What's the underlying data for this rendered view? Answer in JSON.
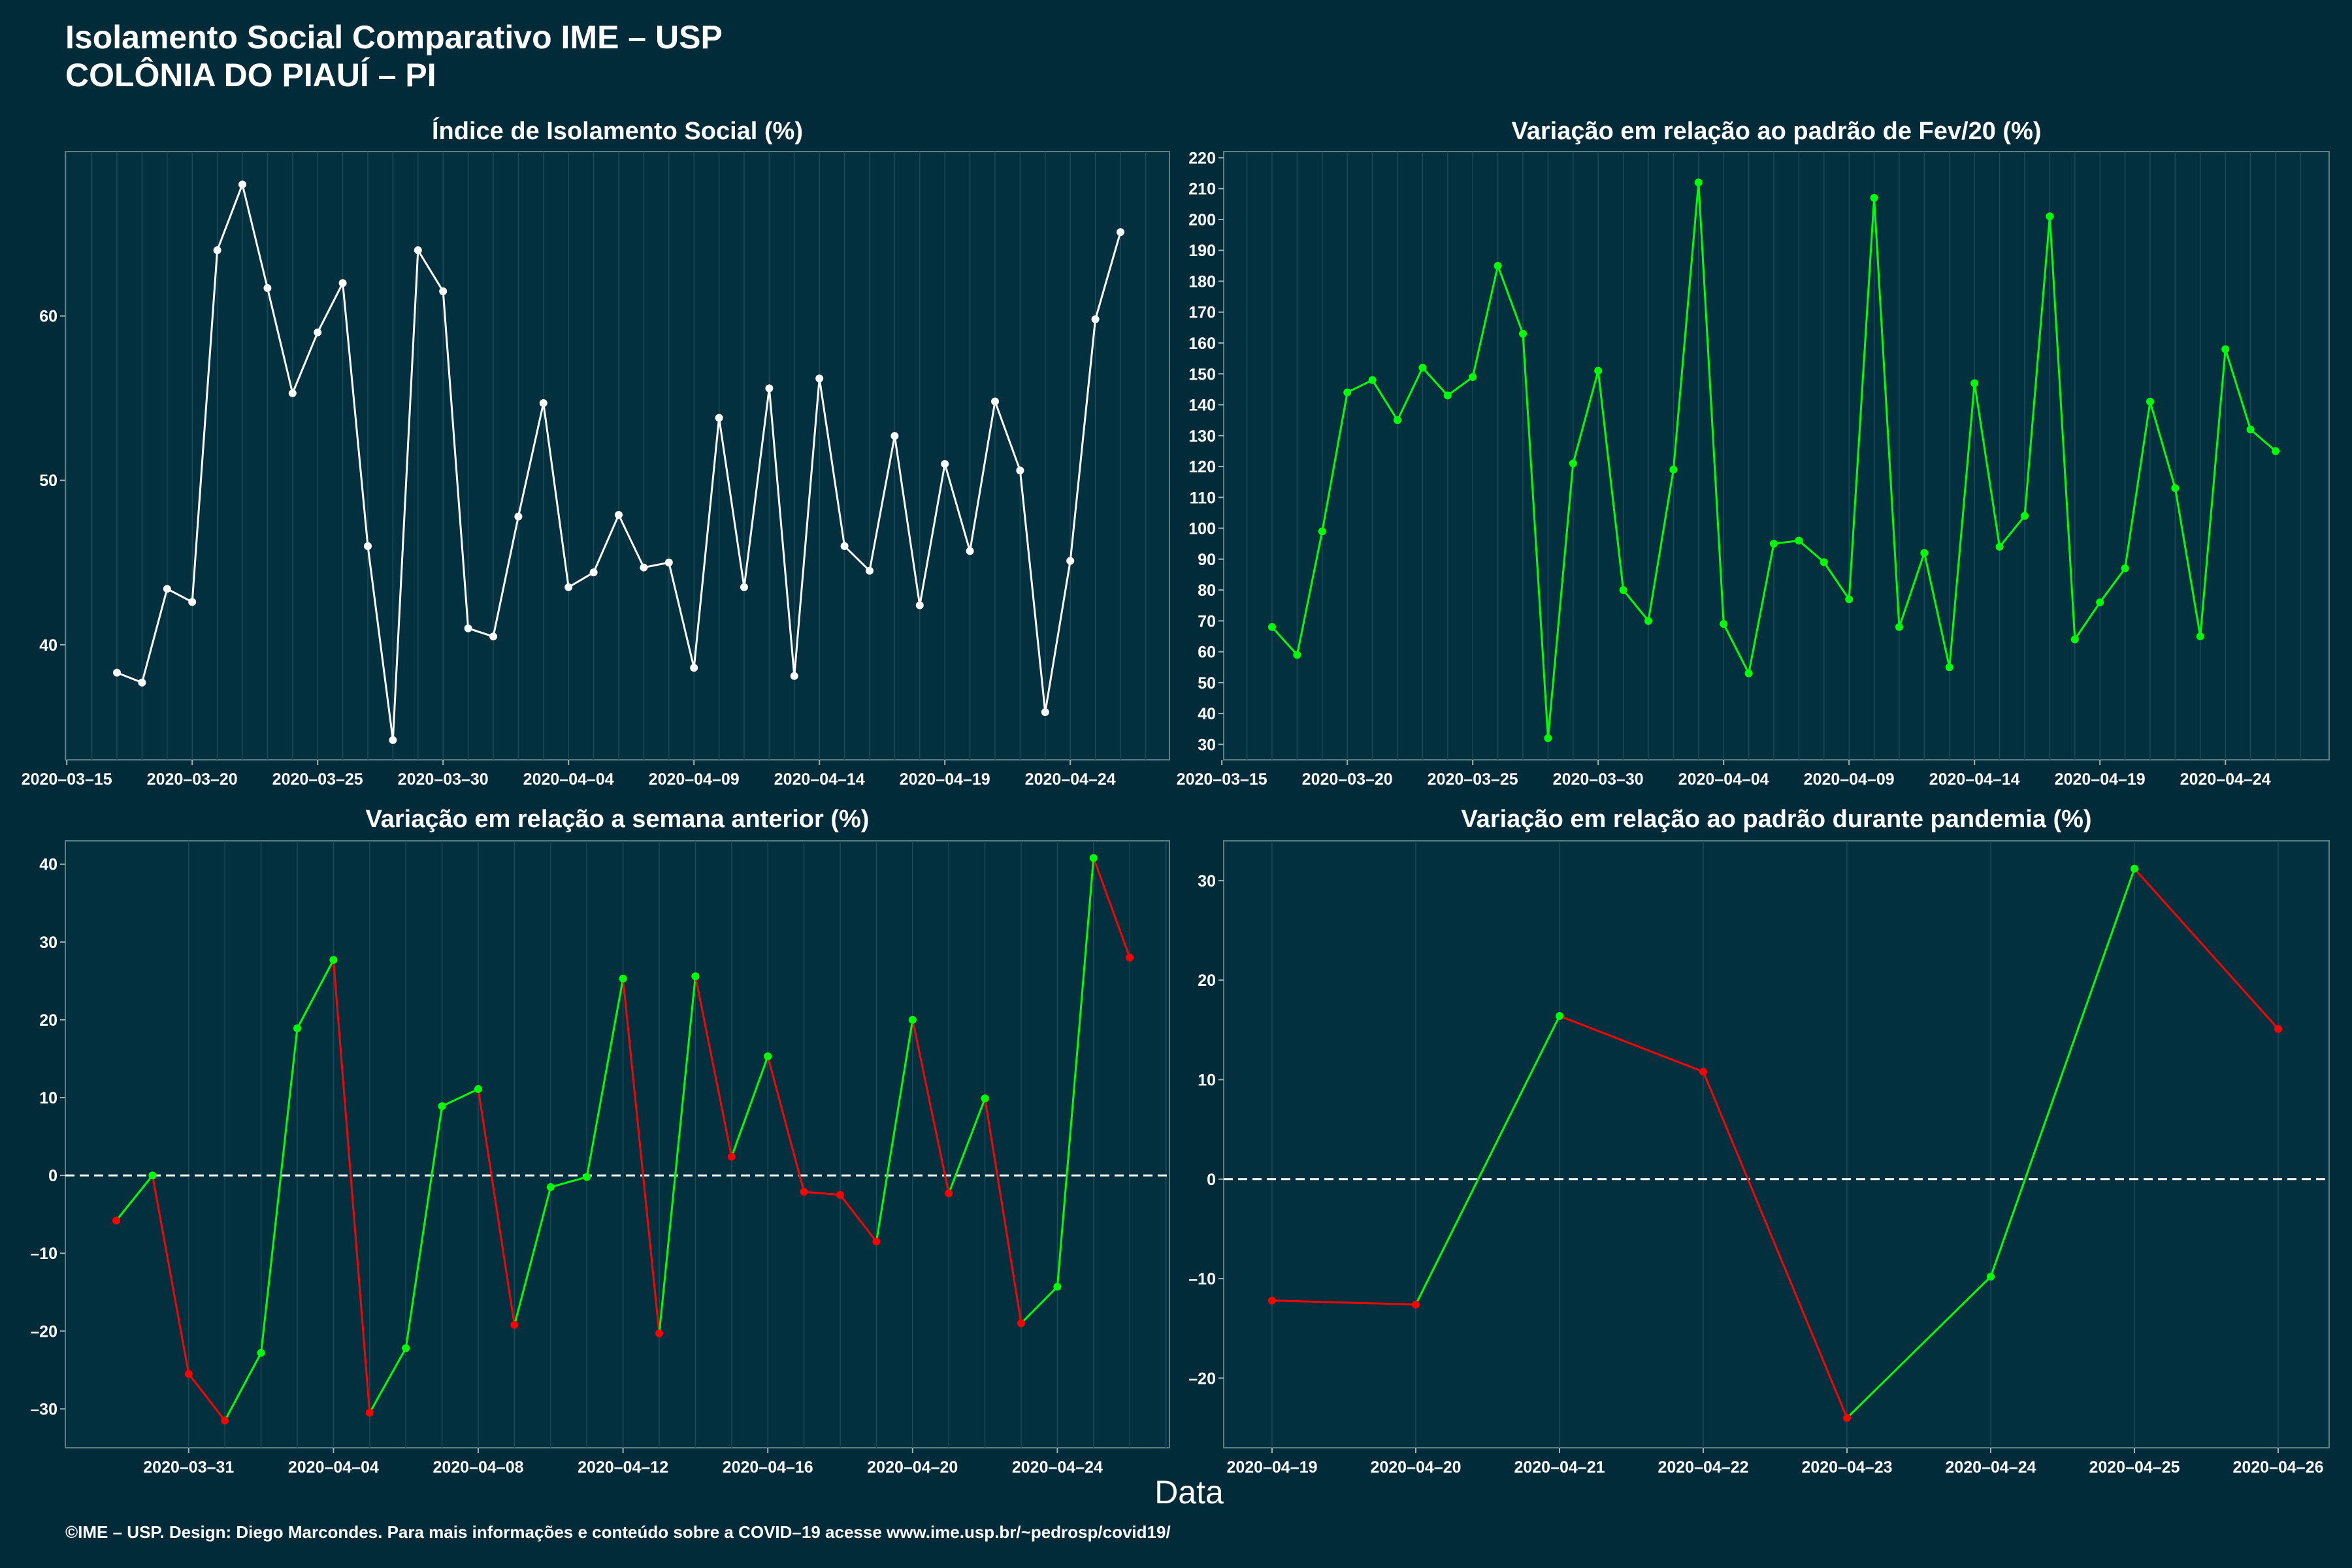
{
  "header": {
    "title": "Isolamento Social Comparativo IME – USP\nCOLÔNIA DO PIAUÍ – PI"
  },
  "x_axis_title": "Data",
  "footer": "©IME – USP. Design: Diego Marcondes. Para mais informações e conteúdo sobre a COVID–19 acesse www.ime.usp.br/~pedrosp/covid19/",
  "colors": {
    "background": "#022b3a",
    "panel": "#02303e",
    "white_line": "#ffffff",
    "positive": "#00ff00",
    "negative": "#ff0000"
  },
  "chart_data": [
    {
      "type": "line",
      "title": "Índice de Isolamento Social (%)",
      "color": "white",
      "x_ticks": [
        "2020–03–15",
        "2020–03–20",
        "2020–03–25",
        "2020–03–30",
        "2020–04–04",
        "2020–04–09",
        "2020–04–14",
        "2020–04–19",
        "2020–04–24"
      ],
      "y_ticks": [
        "40",
        "50",
        "60"
      ],
      "ylim": [
        33,
        70
      ],
      "x_start": "2020-03-17",
      "x": [
        "2020-03-17",
        "2020-03-18",
        "2020-03-19",
        "2020-03-20",
        "2020-03-21",
        "2020-03-22",
        "2020-03-23",
        "2020-03-24",
        "2020-03-25",
        "2020-03-26",
        "2020-03-27",
        "2020-03-28",
        "2020-03-29",
        "2020-03-30",
        "2020-03-31",
        "2020-04-01",
        "2020-04-02",
        "2020-04-03",
        "2020-04-04",
        "2020-04-05",
        "2020-04-06",
        "2020-04-07",
        "2020-04-08",
        "2020-04-09",
        "2020-04-10",
        "2020-04-11",
        "2020-04-12",
        "2020-04-13",
        "2020-04-14",
        "2020-04-15",
        "2020-04-16",
        "2020-04-17",
        "2020-04-18",
        "2020-04-19",
        "2020-04-20",
        "2020-04-21",
        "2020-04-22",
        "2020-04-23",
        "2020-04-24",
        "2020-04-25",
        "2020-04-26"
      ],
      "values": [
        38.3,
        37.7,
        43.4,
        42.6,
        64.0,
        68.0,
        61.7,
        55.3,
        59.0,
        62.0,
        46.0,
        34.2,
        64.0,
        61.5,
        41.0,
        40.5,
        47.8,
        54.7,
        43.5,
        44.4,
        47.9,
        44.7,
        45.0,
        38.6,
        53.8,
        43.5,
        55.6,
        38.1,
        56.2,
        46.0,
        44.5,
        52.7,
        42.4,
        51.0,
        45.7,
        54.8,
        50.6,
        35.9,
        45.1,
        59.8,
        65.1
      ]
    },
    {
      "type": "line",
      "title": "Variação em relação ao padrão de Fev/20 (%)",
      "color": "green",
      "x_ticks": [
        "2020–03–15",
        "2020–03–20",
        "2020–03–25",
        "2020–03–30",
        "2020–04–04",
        "2020–04–09",
        "2020–04–14",
        "2020–04–19",
        "2020–04–24"
      ],
      "y_ticks": [
        "30",
        "40",
        "50",
        "60",
        "70",
        "80",
        "90",
        "100",
        "110",
        "120",
        "130",
        "140",
        "150",
        "160",
        "170",
        "180",
        "190",
        "200",
        "210",
        "220"
      ],
      "ylim": [
        25,
        222
      ],
      "x_start": "2020-03-17",
      "x": [
        "2020-03-17",
        "2020-03-18",
        "2020-03-19",
        "2020-03-20",
        "2020-03-21",
        "2020-03-22",
        "2020-03-23",
        "2020-03-24",
        "2020-03-25",
        "2020-03-26",
        "2020-03-27",
        "2020-03-28",
        "2020-03-29",
        "2020-03-30",
        "2020-03-31",
        "2020-04-01",
        "2020-04-02",
        "2020-04-03",
        "2020-04-04",
        "2020-04-05",
        "2020-04-06",
        "2020-04-07",
        "2020-04-08",
        "2020-04-09",
        "2020-04-10",
        "2020-04-11",
        "2020-04-12",
        "2020-04-13",
        "2020-04-14",
        "2020-04-15",
        "2020-04-16",
        "2020-04-17",
        "2020-04-18",
        "2020-04-19",
        "2020-04-20",
        "2020-04-21",
        "2020-04-22",
        "2020-04-23",
        "2020-04-24",
        "2020-04-25",
        "2020-04-26"
      ],
      "values": [
        68,
        59,
        99,
        144,
        148,
        135,
        152,
        143,
        149,
        185,
        163,
        32,
        121,
        151,
        80,
        70,
        119,
        212,
        69,
        53,
        95,
        96,
        89,
        77,
        207,
        68,
        92,
        55,
        147,
        94,
        104,
        201,
        64,
        76,
        87,
        141,
        113,
        65,
        158,
        132,
        125
      ]
    },
    {
      "type": "line",
      "title": "Variação em relação a semana anterior (%)",
      "color": "sign",
      "zero_line": true,
      "x_ticks": [
        "2020–03–31",
        "2020–04–04",
        "2020–04–08",
        "2020–04–12",
        "2020–04–16",
        "2020–04–20",
        "2020–04–24"
      ],
      "y_ticks": [
        "–30",
        "–20",
        "–10",
        "0",
        "10",
        "20",
        "30",
        "40"
      ],
      "ylim": [
        -35,
        43
      ],
      "x_start": "2020-03-29",
      "x": [
        "2020-03-29",
        "2020-03-30",
        "2020-03-31",
        "2020-04-01",
        "2020-04-02",
        "2020-04-03",
        "2020-04-04",
        "2020-04-05",
        "2020-04-06",
        "2020-04-07",
        "2020-04-08",
        "2020-04-09",
        "2020-04-10",
        "2020-04-11",
        "2020-04-12",
        "2020-04-13",
        "2020-04-14",
        "2020-04-15",
        "2020-04-16",
        "2020-04-17",
        "2020-04-18",
        "2020-04-19",
        "2020-04-20",
        "2020-04-21",
        "2020-04-22",
        "2020-04-23",
        "2020-04-24",
        "2020-04-25",
        "2020-04-26"
      ],
      "values": [
        -5.8,
        0.0,
        -25.5,
        -31.5,
        -22.8,
        18.9,
        27.7,
        -30.5,
        -22.2,
        8.9,
        11.1,
        -19.2,
        -1.5,
        -0.2,
        25.3,
        -20.3,
        25.6,
        2.4,
        15.3,
        -2.1,
        -2.5,
        -8.5,
        20.0,
        -2.3,
        9.9,
        -19.0,
        -14.3,
        40.8,
        28.0
      ]
    },
    {
      "type": "line",
      "title": "Variação em relação ao padrão durante pandemia (%)",
      "color": "sign",
      "zero_line": true,
      "x_ticks": [
        "2020–04–19",
        "2020–04–20",
        "2020–04–21",
        "2020–04–22",
        "2020–04–23",
        "2020–04–24",
        "2020–04–25",
        "2020–04–26"
      ],
      "y_ticks": [
        "–20",
        "–10",
        "0",
        "10",
        "20",
        "30"
      ],
      "ylim": [
        -27,
        34
      ],
      "x_start": "2020-04-19",
      "x": [
        "2020-04-19",
        "2020-04-20",
        "2020-04-21",
        "2020-04-22",
        "2020-04-23",
        "2020-04-24",
        "2020-04-25",
        "2020-04-26"
      ],
      "values": [
        -12.2,
        -12.6,
        16.4,
        10.8,
        -24.0,
        -9.8,
        31.2,
        15.1
      ]
    }
  ]
}
